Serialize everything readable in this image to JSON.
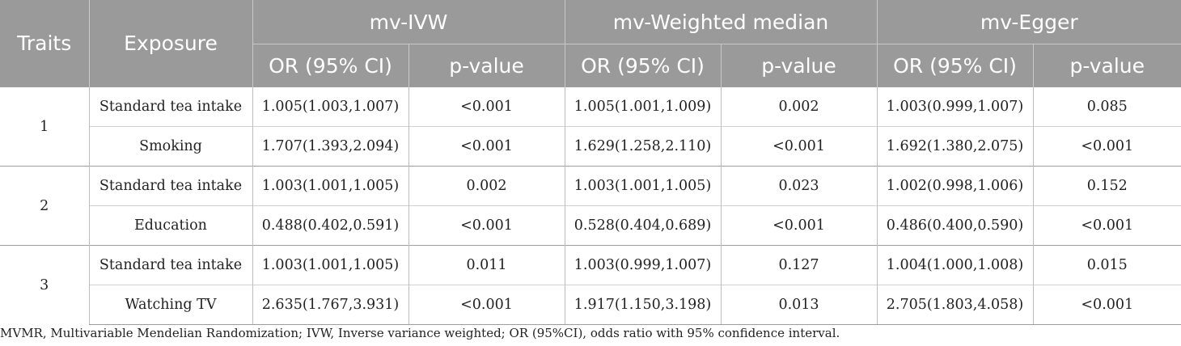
{
  "header": {
    "traits": "Traits",
    "exposure": "Exposure",
    "methods": [
      "mv-IVW",
      "mv-Weighted median",
      "mv-Egger"
    ],
    "or_label": "OR (95% CI)",
    "p_label": "p-value"
  },
  "groups": [
    {
      "trait": "1",
      "rows": [
        {
          "exposure": "Standard tea intake",
          "ivw_or": "1.005(1.003,1.007)",
          "ivw_p": "<0.001",
          "wm_or": "1.005(1.001,1.009)",
          "wm_p": "0.002",
          "egger_or": "1.003(0.999,1.007)",
          "egger_p": "0.085"
        },
        {
          "exposure": "Smoking",
          "ivw_or": "1.707(1.393,2.094)",
          "ivw_p": "<0.001",
          "wm_or": "1.629(1.258,2.110)",
          "wm_p": "<0.001",
          "egger_or": "1.692(1.380,2.075)",
          "egger_p": "<0.001"
        }
      ]
    },
    {
      "trait": "2",
      "rows": [
        {
          "exposure": "Standard tea intake",
          "ivw_or": "1.003(1.001,1.005)",
          "ivw_p": "0.002",
          "wm_or": "1.003(1.001,1.005)",
          "wm_p": "0.023",
          "egger_or": "1.002(0.998,1.006)",
          "egger_p": "0.152"
        },
        {
          "exposure": "Education",
          "ivw_or": "0.488(0.402,0.591)",
          "ivw_p": "<0.001",
          "wm_or": "0.528(0.404,0.689)",
          "wm_p": "<0.001",
          "egger_or": "0.486(0.400,0.590)",
          "egger_p": "<0.001"
        }
      ]
    },
    {
      "trait": "3",
      "rows": [
        {
          "exposure": "Standard tea intake",
          "ivw_or": "1.003(1.001,1.005)",
          "ivw_p": "0.011",
          "wm_or": "1.003(0.999,1.007)",
          "wm_p": "0.127",
          "egger_or": "1.004(1.000,1.008)",
          "egger_p": "0.015"
        },
        {
          "exposure": "Watching TV",
          "ivw_or": "2.635(1.767,3.931)",
          "ivw_p": "<0.001",
          "wm_or": "1.917(1.150,3.198)",
          "wm_p": "0.013",
          "egger_or": "2.705(1.803,4.058)",
          "egger_p": "<0.001"
        }
      ]
    }
  ],
  "footnote": "MVMR, Multivariable Mendelian Randomization; IVW, Inverse variance weighted; OR (95%CI), odds ratio with 95% confidence interval.",
  "colors": {
    "header_bg": "#9a9a9a",
    "header_text": "#ffffff",
    "body_text": "#222222"
  }
}
